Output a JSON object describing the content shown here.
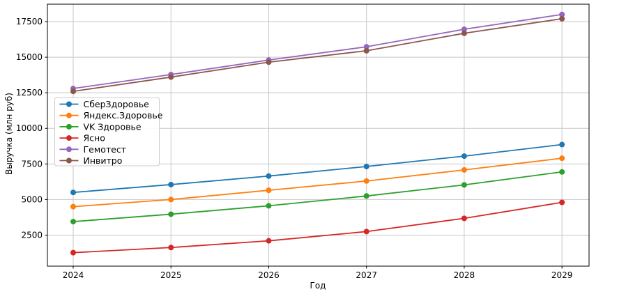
{
  "figure": {
    "xlabel": "Год",
    "ylabel": "Выручка (млн руб)"
  },
  "chart_data": {
    "type": "line",
    "xlabel": "Год",
    "ylabel": "Выручка (млн руб)",
    "categories": [
      2024,
      2025,
      2026,
      2027,
      2028,
      2029
    ],
    "series": [
      {
        "name": "СберЗдоровье",
        "color": "#1f77b4",
        "values": [
          5500,
          6050,
          6650,
          7320,
          8050,
          8860
        ]
      },
      {
        "name": "Яндекс.Здоровье",
        "color": "#ff7f0e",
        "values": [
          4500,
          5000,
          5650,
          6300,
          7080,
          7900
        ]
      },
      {
        "name": "VK Здоровье",
        "color": "#2ca02c",
        "values": [
          3450,
          3970,
          4560,
          5250,
          6030,
          6940
        ]
      },
      {
        "name": "Ясно",
        "color": "#d62728",
        "values": [
          1270,
          1630,
          2100,
          2750,
          3680,
          4800
        ]
      },
      {
        "name": "Гемотест",
        "color": "#9467bd",
        "values": [
          12800,
          13780,
          14800,
          15730,
          16960,
          18000
        ]
      },
      {
        "name": "Инвитро",
        "color": "#8c564b",
        "values": [
          12600,
          13600,
          14650,
          15450,
          16680,
          17700
        ]
      }
    ],
    "yticks": [
      2500,
      5000,
      7500,
      10000,
      12500,
      15000,
      17500
    ],
    "xlim": [
      2023.736,
      2029.277
    ],
    "ylim": [
      322,
      18723
    ],
    "grid": true,
    "grid_color": "#c8c8c8",
    "spine_color": "#000000",
    "marker": "circle",
    "legend_position": "upper-left-inside"
  }
}
